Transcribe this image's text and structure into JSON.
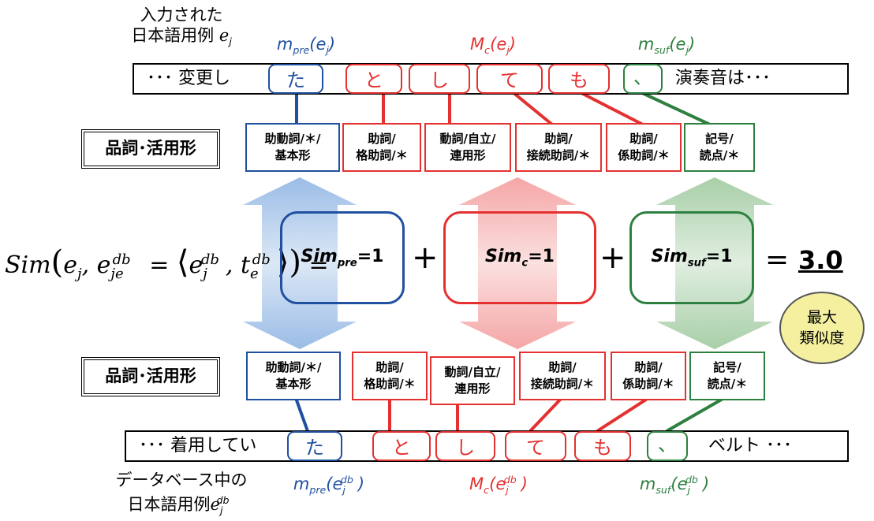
{
  "input_label": {
    "line1": "入力された",
    "line2": "日本語用例",
    "var": "e",
    "sub": "j"
  },
  "db_label": {
    "line1": "データベース中の",
    "line2": "日本語用例",
    "var": "e",
    "sub": "j",
    "sup": "db"
  },
  "top_sentence": {
    "prefix": "･･･ 変更し",
    "suffix": "演奏音は･･･",
    "tokens": [
      "た",
      "と",
      "し",
      "て",
      "も",
      "、"
    ]
  },
  "bottom_sentence": {
    "prefix": "･･･ 着用してい",
    "suffix": "ベルト ･･･",
    "tokens": [
      "た",
      "と",
      "し",
      "て",
      "も",
      "、"
    ]
  },
  "top_annotations": {
    "pre": {
      "name": "m",
      "sub": "pre",
      "arg": "e",
      "arg_sub": "j"
    },
    "c": {
      "name": "M",
      "sub": "c",
      "arg": "e",
      "arg_sub": "j"
    },
    "suf": {
      "name": "m",
      "sub": "suf",
      "arg": "e",
      "arg_sub": "j"
    }
  },
  "bottom_annotations": {
    "pre": {
      "name": "m",
      "sub": "pre",
      "arg": "e",
      "arg_sub": "j",
      "arg_sup": "db"
    },
    "c": {
      "name": "M",
      "sub": "c",
      "arg": "e",
      "arg_sub": "j",
      "arg_sup": "db"
    },
    "suf": {
      "name": "m",
      "sub": "suf",
      "arg": "e",
      "arg_sub": "j",
      "arg_sup": "db"
    }
  },
  "pos_title": "品詞･活用形",
  "top_pos": [
    {
      "l1": "助動詞/＊/",
      "l2": "基本形",
      "color": "#2050A0"
    },
    {
      "l1": "助詞/",
      "l2": "格助詞/＊",
      "color": "#E53030"
    },
    {
      "l1": "動詞/自立/",
      "l2": "連用形",
      "color": "#E53030"
    },
    {
      "l1": "助詞/",
      "l2": "接続助詞/＊",
      "color": "#E53030"
    },
    {
      "l1": "助詞/",
      "l2": "係助詞/＊",
      "color": "#E53030"
    },
    {
      "l1": "記号/",
      "l2": "読点/＊",
      "color": "#2E8040"
    }
  ],
  "bottom_pos": [
    {
      "l1": "助動詞/＊/",
      "l2": "基本形",
      "color": "#2050A0"
    },
    {
      "l1": "助詞/",
      "l2": "格助詞/＊",
      "color": "#E53030"
    },
    {
      "l1": "動詞/自立/",
      "l2": "連用形",
      "color": "#E53030"
    },
    {
      "l1": "助詞/",
      "l2": "接続助詞/＊",
      "color": "#E53030"
    },
    {
      "l1": "助詞/",
      "l2": "係助詞/＊",
      "color": "#E53030"
    },
    {
      "l1": "記号/",
      "l2": "読点/＊",
      "color": "#2E8040"
    }
  ],
  "formula": {
    "lhs": "Sim(e_j, e_je^db = ⟨e_j^db, t_e^db⟩) ="
  },
  "sim_terms": {
    "pre": {
      "name": "Sim",
      "sub": "pre",
      "value": "=1"
    },
    "c": {
      "name": "Sim",
      "sub": "c",
      "value": "=1"
    },
    "suf": {
      "name": "Sim",
      "sub": "suf",
      "value": "=1"
    }
  },
  "operators": {
    "plus": "+",
    "equals": "="
  },
  "result": "3.0",
  "badge": {
    "line1": "最大",
    "line2": "類似度"
  },
  "colors": {
    "pre": "#2050A0",
    "core": "#E53030",
    "suf": "#2E8040"
  }
}
